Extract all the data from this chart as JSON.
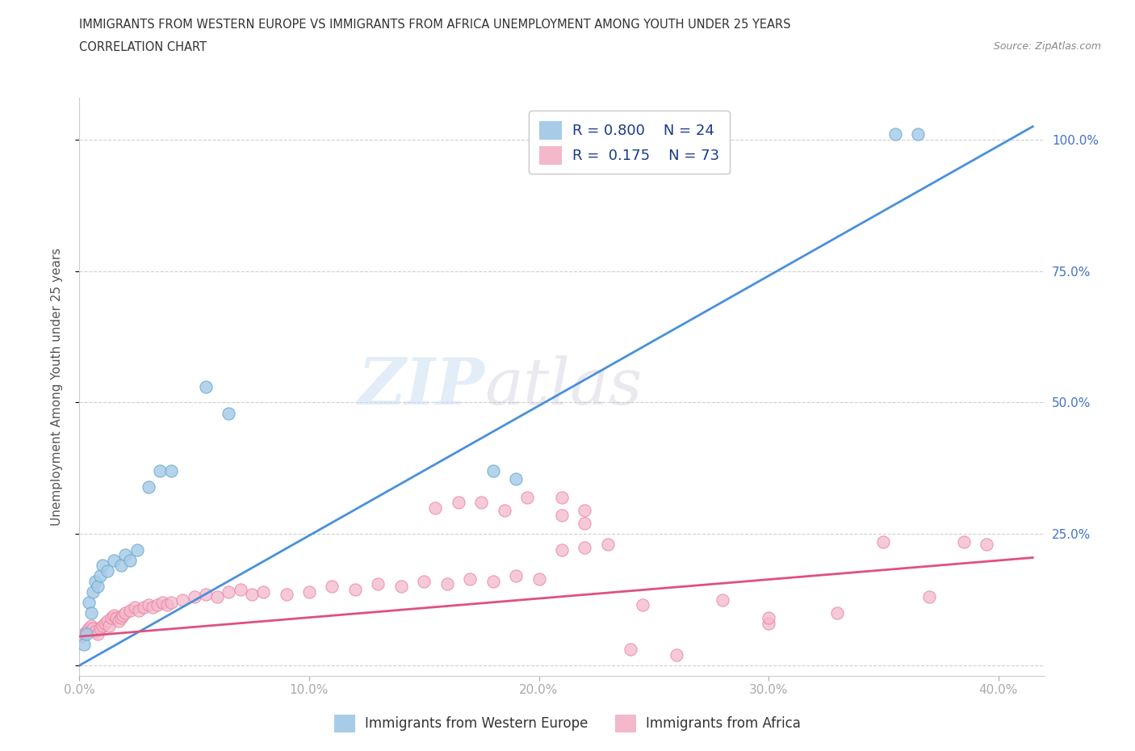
{
  "title_line1": "IMMIGRANTS FROM WESTERN EUROPE VS IMMIGRANTS FROM AFRICA UNEMPLOYMENT AMONG YOUTH UNDER 25 YEARS",
  "title_line2": "CORRELATION CHART",
  "source": "Source: ZipAtlas.com",
  "ylabel": "Unemployment Among Youth under 25 years",
  "watermark_zip": "ZIP",
  "watermark_atlas": "atlas",
  "legend_r1": "R = 0.800",
  "legend_n1": "N = 24",
  "legend_r2": "R =  0.175",
  "legend_n2": "N = 73",
  "blue_color": "#a8cce8",
  "pink_color": "#f4b8cb",
  "blue_scatter_edge": "#6aacd0",
  "pink_scatter_edge": "#e87fa0",
  "blue_line_color": "#4a90d9",
  "pink_line_color": "#e05080",
  "xlim": [
    0.0,
    0.42
  ],
  "ylim": [
    -0.02,
    1.08
  ],
  "xticks": [
    0.0,
    0.1,
    0.2,
    0.3,
    0.4
  ],
  "yticks": [
    0.0,
    0.25,
    0.5,
    0.75,
    1.0
  ],
  "xtick_labels": [
    "0.0%",
    "10.0%",
    "20.0%",
    "30.0%",
    "40.0%"
  ],
  "ytick_labels_right": [
    "",
    "25.0%",
    "50.0%",
    "75.0%",
    "100.0%"
  ],
  "blue_scatter_x": [
    0.002,
    0.003,
    0.004,
    0.005,
    0.006,
    0.007,
    0.008,
    0.009,
    0.01,
    0.012,
    0.015,
    0.018,
    0.02,
    0.022,
    0.025,
    0.03,
    0.035,
    0.04,
    0.055,
    0.065,
    0.18,
    0.19,
    0.355,
    0.365
  ],
  "blue_scatter_y": [
    0.04,
    0.06,
    0.12,
    0.1,
    0.14,
    0.16,
    0.15,
    0.17,
    0.19,
    0.18,
    0.2,
    0.19,
    0.21,
    0.2,
    0.22,
    0.34,
    0.37,
    0.37,
    0.53,
    0.48,
    0.37,
    0.355,
    1.01,
    1.01
  ],
  "pink_scatter_x": [
    0.001,
    0.002,
    0.003,
    0.004,
    0.005,
    0.006,
    0.007,
    0.008,
    0.009,
    0.01,
    0.011,
    0.012,
    0.013,
    0.014,
    0.015,
    0.016,
    0.017,
    0.018,
    0.019,
    0.02,
    0.022,
    0.024,
    0.026,
    0.028,
    0.03,
    0.032,
    0.034,
    0.036,
    0.038,
    0.04,
    0.045,
    0.05,
    0.055,
    0.06,
    0.065,
    0.07,
    0.075,
    0.08,
    0.09,
    0.1,
    0.11,
    0.12,
    0.13,
    0.14,
    0.15,
    0.16,
    0.17,
    0.18,
    0.19,
    0.2,
    0.21,
    0.22,
    0.23,
    0.155,
    0.165,
    0.175,
    0.185,
    0.195,
    0.21,
    0.22,
    0.24,
    0.26,
    0.3,
    0.3,
    0.33,
    0.35,
    0.37,
    0.385,
    0.395,
    0.21,
    0.22,
    0.245,
    0.28
  ],
  "pink_scatter_y": [
    0.055,
    0.06,
    0.065,
    0.07,
    0.075,
    0.07,
    0.065,
    0.06,
    0.07,
    0.075,
    0.08,
    0.085,
    0.075,
    0.09,
    0.095,
    0.09,
    0.085,
    0.09,
    0.095,
    0.1,
    0.105,
    0.11,
    0.105,
    0.11,
    0.115,
    0.11,
    0.115,
    0.12,
    0.115,
    0.12,
    0.125,
    0.13,
    0.135,
    0.13,
    0.14,
    0.145,
    0.135,
    0.14,
    0.135,
    0.14,
    0.15,
    0.145,
    0.155,
    0.15,
    0.16,
    0.155,
    0.165,
    0.16,
    0.17,
    0.165,
    0.22,
    0.225,
    0.23,
    0.3,
    0.31,
    0.31,
    0.295,
    0.32,
    0.32,
    0.295,
    0.03,
    0.02,
    0.08,
    0.09,
    0.1,
    0.235,
    0.13,
    0.235,
    0.23,
    0.285,
    0.27,
    0.115,
    0.125
  ],
  "blue_line_x": [
    0.0,
    0.415
  ],
  "blue_line_y": [
    0.0,
    1.025
  ],
  "pink_line_x": [
    0.0,
    0.415
  ],
  "pink_line_y": [
    0.055,
    0.205
  ],
  "grid_color": "#d0d0d0",
  "background_color": "#ffffff",
  "axis_color": "#cccccc",
  "legend_label1": "Immigrants from Western Europe",
  "legend_label2": "Immigrants from Africa"
}
